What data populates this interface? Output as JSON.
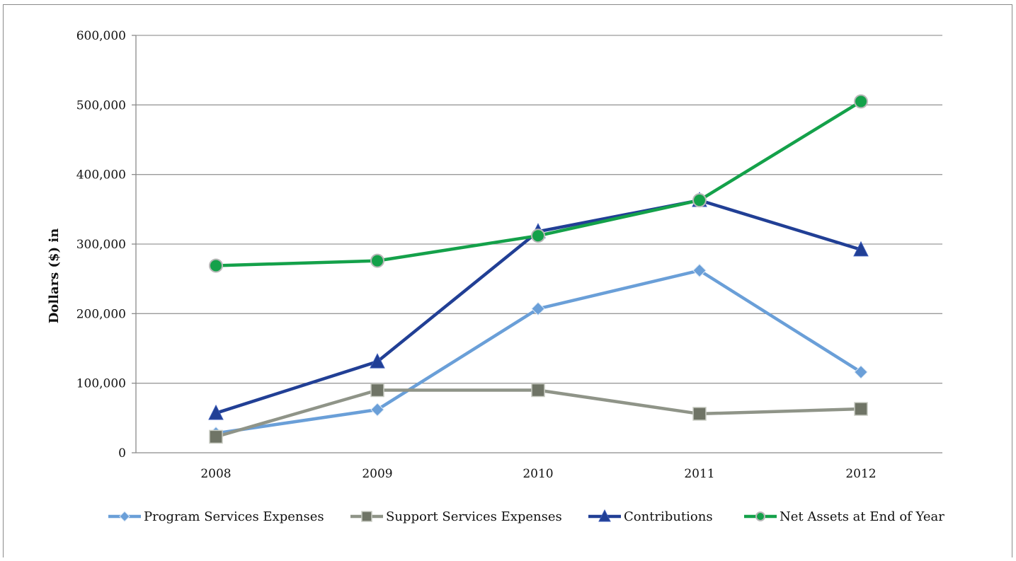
{
  "chart_data": {
    "type": "line",
    "title": "",
    "xlabel": "",
    "ylabel": "Dollars ($) in",
    "categories": [
      "2008",
      "2009",
      "2010",
      "2011",
      "2012"
    ],
    "ylim": [
      0,
      600000
    ],
    "yticks": [
      0,
      100000,
      200000,
      300000,
      400000,
      500000,
      600000
    ],
    "ytick_labels": [
      "0",
      "100,000",
      "200,000",
      "300,000",
      "400,000",
      "500,000",
      "600,000"
    ],
    "grid": "horizontal",
    "legend_position": "bottom",
    "series": [
      {
        "name": "Program Services Expenses",
        "values": [
          28000,
          62000,
          207000,
          262000,
          116000
        ],
        "color": "#6a9fd8",
        "marker": "diamond"
      },
      {
        "name": "Support Services Expenses",
        "values": [
          23000,
          90000,
          90000,
          56000,
          63000
        ],
        "color": "#8f9488",
        "marker": "square"
      },
      {
        "name": "Contributions",
        "values": [
          57000,
          131000,
          318000,
          363000,
          292000
        ],
        "color": "#213f95",
        "marker": "triangle"
      },
      {
        "name": "Net Assets at End of Year",
        "values": [
          269000,
          276000,
          312000,
          363000,
          505000
        ],
        "color": "#14a14a",
        "marker": "circle"
      }
    ]
  }
}
